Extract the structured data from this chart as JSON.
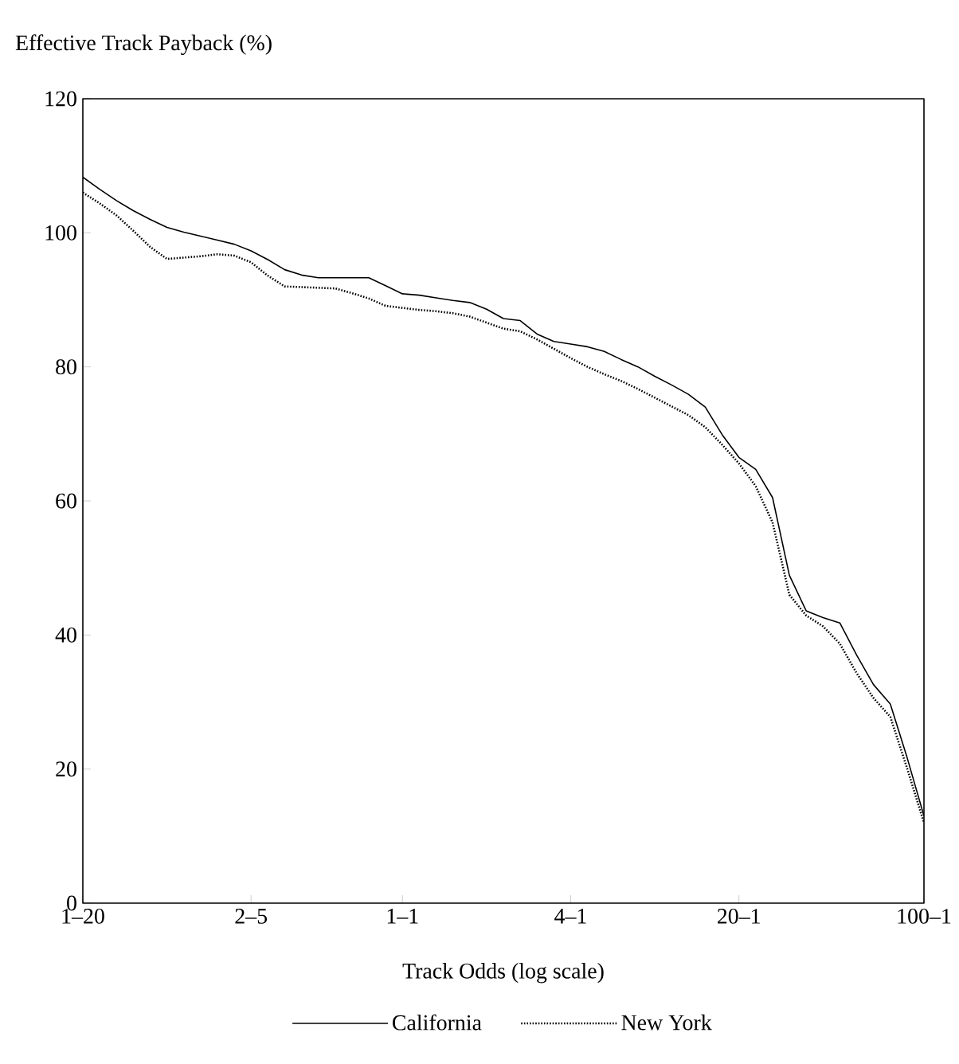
{
  "chart_data": {
    "type": "line",
    "ylabel": "Effective Track Payback (%)",
    "xlabel": "Track Odds (log scale)",
    "categories": [
      "1–20",
      null,
      null,
      null,
      null,
      null,
      null,
      null,
      null,
      null,
      "2–5",
      null,
      null,
      null,
      null,
      null,
      null,
      null,
      null,
      "1–1",
      null,
      null,
      null,
      null,
      null,
      null,
      null,
      null,
      null,
      "4–1",
      null,
      null,
      null,
      null,
      null,
      null,
      null,
      null,
      null,
      "20–1",
      null,
      null,
      null,
      null,
      null,
      null,
      null,
      null,
      null,
      null,
      "100–1"
    ],
    "ylim": [
      0,
      120
    ],
    "yticks": [
      0,
      20,
      40,
      60,
      80,
      100,
      120
    ],
    "grid": false,
    "legend": "bottom",
    "marker": "none",
    "series": [
      {
        "name": "California",
        "color": "#000000",
        "line_style": "solid",
        "values": [
          108.3,
          106.5,
          104.8,
          103.3,
          102.0,
          100.8,
          100.1,
          99.5,
          98.9,
          98.3,
          97.3,
          96.0,
          94.5,
          93.7,
          93.3,
          93.3,
          93.3,
          93.3,
          92.1,
          90.9,
          90.7,
          90.3,
          89.9,
          89.6,
          88.6,
          87.2,
          86.9,
          84.9,
          83.8,
          83.4,
          83.0,
          82.3,
          81.1,
          80.0,
          78.6,
          77.3,
          75.9,
          74.0,
          69.9,
          66.5,
          64.7,
          60.5,
          48.9,
          43.6,
          42.6,
          41.8,
          37.0,
          32.6,
          29.7,
          21.7,
          13
        ]
      },
      {
        "name": "New York",
        "color": "#000000",
        "line_style": "dotted",
        "values": [
          106.0,
          104.4,
          102.6,
          100.3,
          97.9,
          96.1,
          96.3,
          96.5,
          96.8,
          96.6,
          95.6,
          93.6,
          92.0,
          91.9,
          91.8,
          91.7,
          91.0,
          90.2,
          89.1,
          88.8,
          88.5,
          88.3,
          88.0,
          87.5,
          86.6,
          85.7,
          85.3,
          84.1,
          82.7,
          81.3,
          80.0,
          78.9,
          77.9,
          76.7,
          75.4,
          74.1,
          72.8,
          71.0,
          68.4,
          65.6,
          62.2,
          56.8,
          46.0,
          42.9,
          41.3,
          38.7,
          34.3,
          30.6,
          27.8,
          20.1,
          12
        ]
      }
    ]
  }
}
